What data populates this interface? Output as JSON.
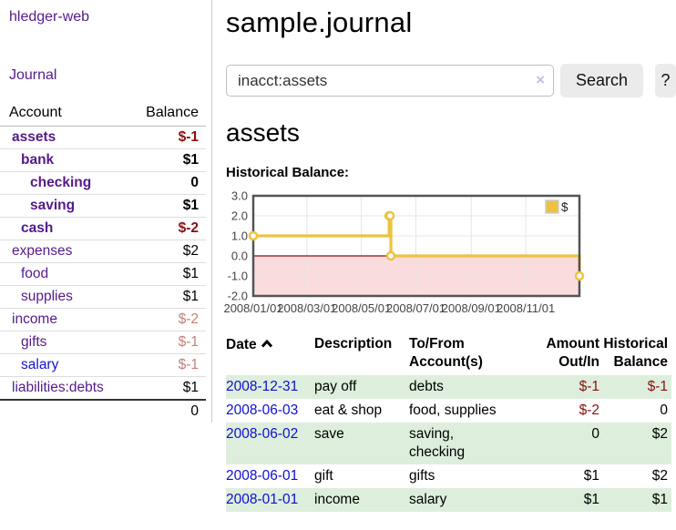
{
  "app": {
    "title": "hledger-web"
  },
  "sidebar": {
    "nav": {
      "journal_label": "Journal"
    },
    "accounts_table": {
      "headers": {
        "account": "Account",
        "balance": "Balance"
      },
      "rows": [
        {
          "name": "assets",
          "depth": 1,
          "bold": true,
          "balance": "$-1",
          "negative": "dark",
          "link_color": "purple"
        },
        {
          "name": "bank",
          "depth": 2,
          "bold": true,
          "balance": "$1",
          "negative": null,
          "link_color": "purple"
        },
        {
          "name": "checking",
          "depth": 3,
          "bold": true,
          "balance": "0",
          "negative": null,
          "link_color": "purple"
        },
        {
          "name": "saving",
          "depth": 3,
          "bold": true,
          "balance": "$1",
          "negative": null,
          "link_color": "purple"
        },
        {
          "name": "cash",
          "depth": 2,
          "bold": true,
          "balance": "$-2",
          "negative": "dark",
          "link_color": "purple"
        },
        {
          "name": "expenses",
          "depth": 1,
          "bold": false,
          "balance": "$2",
          "negative": null,
          "link_color": "purple"
        },
        {
          "name": "food",
          "depth": 2,
          "bold": false,
          "balance": "$1",
          "negative": null,
          "link_color": "purple"
        },
        {
          "name": "supplies",
          "depth": 2,
          "bold": false,
          "balance": "$1",
          "negative": null,
          "link_color": "purple"
        },
        {
          "name": "income",
          "depth": 1,
          "bold": false,
          "balance": "$-2",
          "negative": "light",
          "link_color": "purple"
        },
        {
          "name": "gifts",
          "depth": 2,
          "bold": false,
          "balance": "$-1",
          "negative": "light",
          "link_color": "purple"
        },
        {
          "name": "salary",
          "depth": 2,
          "bold": false,
          "balance": "$-1",
          "negative": "light",
          "link_color": "blue"
        },
        {
          "name": "liabilities:debts",
          "depth": 1,
          "bold": false,
          "balance": "$1",
          "negative": null,
          "link_color": "purple"
        }
      ],
      "total": "0"
    }
  },
  "main": {
    "title": "sample.journal",
    "search": {
      "value": "inacct:assets",
      "clear_icon": "×",
      "button_label": "Search",
      "help_label": "?"
    },
    "account_heading": "assets",
    "chart_heading": "Historical Balance:"
  },
  "chart_data": {
    "type": "line",
    "step": true,
    "title": "Historical Balance",
    "series": [
      {
        "name": "$",
        "color": "#EDC240",
        "points": [
          [
            "2008-01-01",
            1
          ],
          [
            "2008-06-01",
            2
          ],
          [
            "2008-06-02",
            2
          ],
          [
            "2008-06-03",
            0
          ],
          [
            "2008-12-31",
            -1
          ]
        ]
      }
    ],
    "x_range": [
      "2008-01-01",
      "2008-12-31"
    ],
    "ylim": [
      -2.0,
      3.0
    ],
    "yticks": [
      "3.0",
      "2.0",
      "1.0",
      "0.0",
      "-1.0",
      "-2.0"
    ],
    "xticks": [
      "2008/01/01",
      "2008/03/01",
      "2008/05/01",
      "2008/07/01",
      "2008/09/01",
      "2008/11/01"
    ],
    "grid": true,
    "legend": {
      "position": "top-right",
      "label": "$"
    },
    "colors": {
      "line": "#EDC240",
      "negative_fill": "#fadcdc",
      "zero_line": "#8f1010",
      "gridline": "#e6e6e6",
      "border": "#545454",
      "tick_text": "#444444"
    }
  },
  "transactions": {
    "headers": {
      "date": "Date",
      "description": "Description",
      "tofrom_line1": "To/From",
      "tofrom_line2": "Account(s)",
      "amount_line1": "Amount",
      "amount_line2": "Out/In",
      "historical_line1": "Historical",
      "historical_line2": "Balance"
    },
    "sort": {
      "column": "date",
      "direction": "ascending"
    },
    "rows": [
      {
        "date": "2008-12-31",
        "description": "pay off",
        "accounts": "debts",
        "amount": "$-1",
        "balance": "$-1"
      },
      {
        "date": "2008-06-03",
        "description": "eat & shop",
        "accounts": "food, supplies",
        "amount": "$-2",
        "balance": "0"
      },
      {
        "date": "2008-06-02",
        "description": "save",
        "accounts": "saving, checking",
        "amount": "0",
        "balance": "$2"
      },
      {
        "date": "2008-06-01",
        "description": "gift",
        "accounts": "gifts",
        "amount": "$1",
        "balance": "$2"
      },
      {
        "date": "2008-01-01",
        "description": "income",
        "accounts": "salary",
        "amount": "$1",
        "balance": "$1"
      }
    ]
  }
}
